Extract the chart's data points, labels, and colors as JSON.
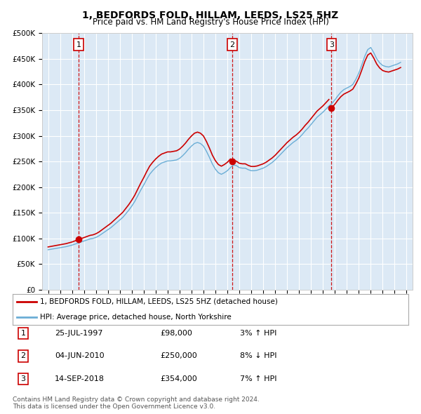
{
  "title": "1, BEDFORDS FOLD, HILLAM, LEEDS, LS25 5HZ",
  "subtitle": "Price paid vs. HM Land Registry's House Price Index (HPI)",
  "background_color": "#dce9f5",
  "plot_bg_color": "#dce9f5",
  "ylim": [
    0,
    500000
  ],
  "yticks": [
    0,
    50000,
    100000,
    150000,
    200000,
    250000,
    300000,
    350000,
    400000,
    450000,
    500000
  ],
  "ytick_labels": [
    "£0",
    "£50K",
    "£100K",
    "£150K",
    "£200K",
    "£250K",
    "£300K",
    "£350K",
    "£400K",
    "£450K",
    "£500K"
  ],
  "xlim_start": 1994.5,
  "xlim_end": 2025.5,
  "xticks": [
    1995,
    1996,
    1997,
    1998,
    1999,
    2000,
    2001,
    2002,
    2003,
    2004,
    2005,
    2006,
    2007,
    2008,
    2009,
    2010,
    2011,
    2012,
    2013,
    2014,
    2015,
    2016,
    2017,
    2018,
    2019,
    2020,
    2021,
    2022,
    2023,
    2024,
    2025
  ],
  "sale_dates": [
    1997.57,
    2010.42,
    2018.71
  ],
  "sale_prices": [
    98000,
    250000,
    354000
  ],
  "sale_labels": [
    "1",
    "2",
    "3"
  ],
  "hpi_years": [
    1995.0,
    1995.25,
    1995.5,
    1995.75,
    1996.0,
    1996.25,
    1996.5,
    1996.75,
    1997.0,
    1997.25,
    1997.5,
    1997.75,
    1998.0,
    1998.25,
    1998.5,
    1998.75,
    1999.0,
    1999.25,
    1999.5,
    1999.75,
    2000.0,
    2000.25,
    2000.5,
    2000.75,
    2001.0,
    2001.25,
    2001.5,
    2001.75,
    2002.0,
    2002.25,
    2002.5,
    2002.75,
    2003.0,
    2003.25,
    2003.5,
    2003.75,
    2004.0,
    2004.25,
    2004.5,
    2004.75,
    2005.0,
    2005.25,
    2005.5,
    2005.75,
    2006.0,
    2006.25,
    2006.5,
    2006.75,
    2007.0,
    2007.25,
    2007.5,
    2007.75,
    2008.0,
    2008.25,
    2008.5,
    2008.75,
    2009.0,
    2009.25,
    2009.5,
    2009.75,
    2010.0,
    2010.25,
    2010.5,
    2010.75,
    2011.0,
    2011.25,
    2011.5,
    2011.75,
    2012.0,
    2012.25,
    2012.5,
    2012.75,
    2013.0,
    2013.25,
    2013.5,
    2013.75,
    2014.0,
    2014.25,
    2014.5,
    2014.75,
    2015.0,
    2015.25,
    2015.5,
    2015.75,
    2016.0,
    2016.25,
    2016.5,
    2016.75,
    2017.0,
    2017.25,
    2017.5,
    2017.75,
    2018.0,
    2018.25,
    2018.5,
    2018.75,
    2019.0,
    2019.25,
    2019.5,
    2019.75,
    2020.0,
    2020.25,
    2020.5,
    2020.75,
    2021.0,
    2021.25,
    2021.5,
    2021.75,
    2022.0,
    2022.25,
    2022.5,
    2022.75,
    2023.0,
    2023.25,
    2023.5,
    2023.75,
    2024.0,
    2024.25,
    2024.5
  ],
  "hpi_values": [
    78000,
    79000,
    80000,
    81000,
    82000,
    83000,
    84000,
    85500,
    87000,
    89000,
    91000,
    93000,
    95000,
    97000,
    99000,
    100000,
    102000,
    105000,
    109000,
    113000,
    117000,
    121000,
    126000,
    131000,
    136000,
    141000,
    148000,
    155000,
    163000,
    172000,
    183000,
    194000,
    204000,
    215000,
    225000,
    232000,
    238000,
    243000,
    247000,
    249000,
    251000,
    251000,
    252000,
    253000,
    256000,
    261000,
    267000,
    274000,
    280000,
    285000,
    287000,
    285000,
    280000,
    270000,
    258000,
    245000,
    235000,
    228000,
    225000,
    228000,
    232000,
    238000,
    243000,
    242000,
    238000,
    237000,
    237000,
    234000,
    232000,
    232000,
    233000,
    235000,
    237000,
    240000,
    244000,
    248000,
    253000,
    259000,
    265000,
    271000,
    277000,
    282000,
    287000,
    291000,
    296000,
    302000,
    309000,
    315000,
    322000,
    329000,
    336000,
    341000,
    346000,
    352000,
    358000,
    363000,
    370000,
    378000,
    385000,
    390000,
    393000,
    396000,
    400000,
    410000,
    422000,
    438000,
    455000,
    468000,
    472000,
    462000,
    450000,
    442000,
    437000,
    435000,
    434000,
    436000,
    438000,
    440000,
    443000
  ],
  "hpi_line_color": "#6baed6",
  "price_line_color": "#cc0000",
  "dot_color": "#cc0000",
  "vline_color": "#cc0000",
  "legend_line1": "1, BEDFORDS FOLD, HILLAM, LEEDS, LS25 5HZ (detached house)",
  "legend_line2": "HPI: Average price, detached house, North Yorkshire",
  "table_rows": [
    {
      "num": "1",
      "date": "25-JUL-1997",
      "price": "£98,000",
      "change": "3% ↑ HPI"
    },
    {
      "num": "2",
      "date": "04-JUN-2010",
      "price": "£250,000",
      "change": "8% ↓ HPI"
    },
    {
      "num": "3",
      "date": "14-SEP-2018",
      "price": "£354,000",
      "change": "7% ↑ HPI"
    }
  ],
  "footer": "Contains HM Land Registry data © Crown copyright and database right 2024.\nThis data is licensed under the Open Government Licence v3.0.",
  "font_family": "DejaVu Sans"
}
